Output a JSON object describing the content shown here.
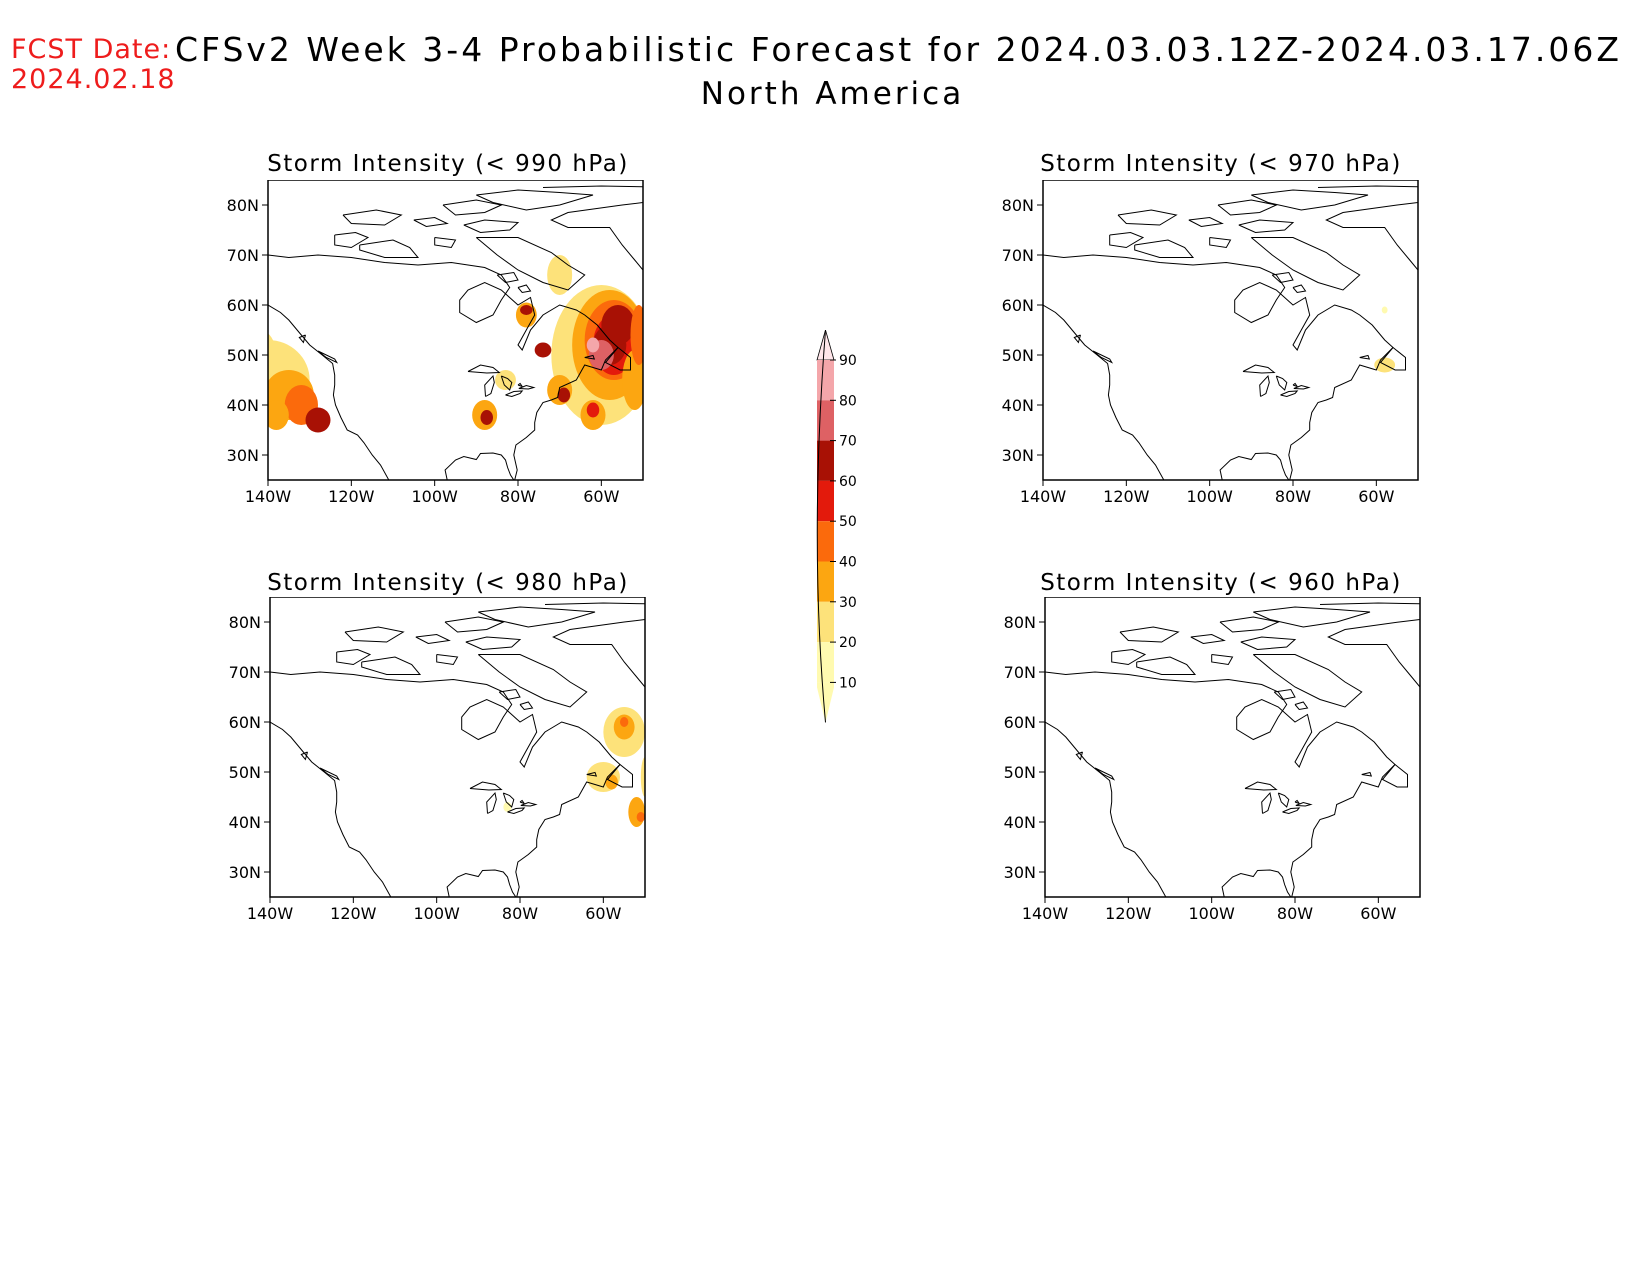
{
  "header": {
    "fcst_label": "FCST Date:",
    "fcst_date": "2024.02.18",
    "title": "CFSv2 Week 3-4 Probabilistic Forecast for 2024.03.03.12Z-2024.03.17.06Z",
    "subtitle": "North America"
  },
  "panels": [
    {
      "title": "Storm Intensity (< 990 hPa)",
      "threshold_hpa": 990,
      "intensity": "high"
    },
    {
      "title": "Storm Intensity (< 970 hPa)",
      "threshold_hpa": 970,
      "intensity": "low"
    },
    {
      "title": "Storm Intensity (< 980 hPa)",
      "threshold_hpa": 980,
      "intensity": "medium"
    },
    {
      "title": "Storm Intensity (< 960 hPa)",
      "threshold_hpa": 960,
      "intensity": "none"
    }
  ],
  "axes": {
    "lat_ticks": [
      "80N",
      "70N",
      "60N",
      "50N",
      "40N",
      "30N"
    ],
    "lon_ticks": [
      "140W",
      "120W",
      "100W",
      "80W",
      "60W"
    ]
  },
  "colorbar": {
    "levels": [
      "10",
      "20",
      "30",
      "40",
      "50",
      "60",
      "70",
      "80",
      "90"
    ],
    "colors": [
      "#fffab0",
      "#fde27a",
      "#fca611",
      "#fb6a0c",
      "#e31a0c",
      "#a81105",
      "#de6164",
      "#f4a6aa",
      "#ffe6ea"
    ]
  }
}
